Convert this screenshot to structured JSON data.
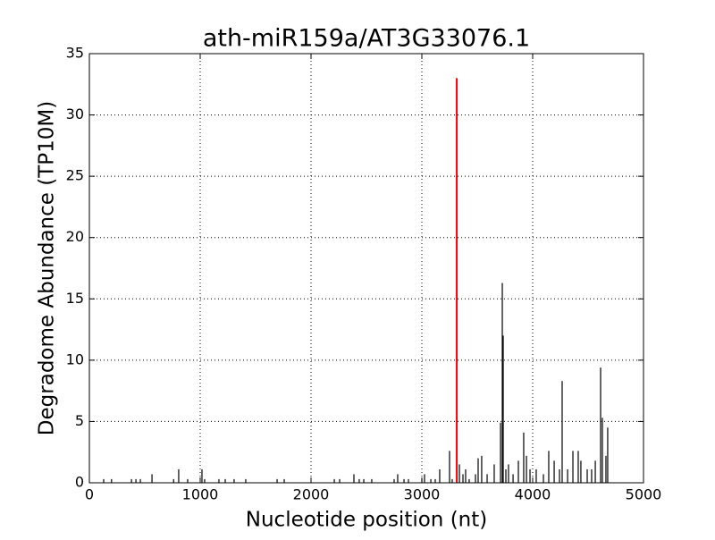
{
  "chart_data": {
    "type": "stem",
    "title": "ath-miR159a/AT3G33076.1",
    "x_label": "Nucleotide position (nt)",
    "y_label": "Degradome Abundance (TP10M)",
    "xlim": [
      0,
      5000
    ],
    "xticks": [
      0,
      1000,
      2000,
      3000,
      4000,
      5000
    ],
    "ylim": [
      0,
      35
    ],
    "yticks": [
      0,
      5,
      10,
      15,
      20,
      25,
      30,
      35
    ],
    "grid": true,
    "series": [
      {
        "color": "#000000",
        "x": [
          129,
          200,
          380,
          420,
          460,
          565,
          760,
          806,
          887,
          1016,
          1040,
          1169,
          1226,
          1306,
          1411,
          1694,
          1758,
          2210,
          2258,
          2387,
          2435,
          2476,
          2548,
          2750,
          2782,
          2839,
          2879,
          3000,
          3024,
          3081,
          3121,
          3161,
          3250,
          3274,
          3339,
          3371,
          3395,
          3427,
          3484,
          3508,
          3540,
          3589,
          3653,
          3710,
          3726,
          3734,
          3758,
          3782,
          3823,
          3871,
          3919,
          3944,
          3976,
          4032,
          4097,
          4145,
          4194,
          4242,
          4266,
          4315,
          4363,
          4411,
          4435,
          4492,
          4532,
          4565,
          4613,
          4629,
          4661,
          4677
        ],
        "values": [
          0.3,
          0.3,
          0.3,
          0.3,
          0.3,
          0.7,
          0.3,
          1.1,
          0.3,
          1.1,
          0.3,
          0.3,
          0.3,
          0.3,
          0.3,
          0.3,
          0.3,
          0.3,
          0.3,
          0.7,
          0.3,
          0.3,
          0.3,
          0.3,
          0.7,
          0.3,
          0.3,
          0.3,
          0.7,
          0.3,
          0.3,
          1.1,
          2.6,
          0.3,
          1.5,
          0.7,
          1.1,
          0.3,
          0.7,
          2.0,
          2.2,
          0.7,
          1.5,
          4.9,
          16.3,
          12.0,
          1.1,
          1.5,
          0.7,
          1.8,
          4.1,
          2.2,
          1.1,
          1.1,
          0.7,
          2.6,
          1.8,
          1.1,
          8.3,
          1.1,
          2.6,
          2.6,
          1.8,
          1.1,
          1.1,
          1.8,
          9.4,
          5.3,
          2.2,
          4.5
        ]
      },
      {
        "color": "#ff0000",
        "x": [
          3315
        ],
        "values": [
          33
        ]
      }
    ]
  }
}
